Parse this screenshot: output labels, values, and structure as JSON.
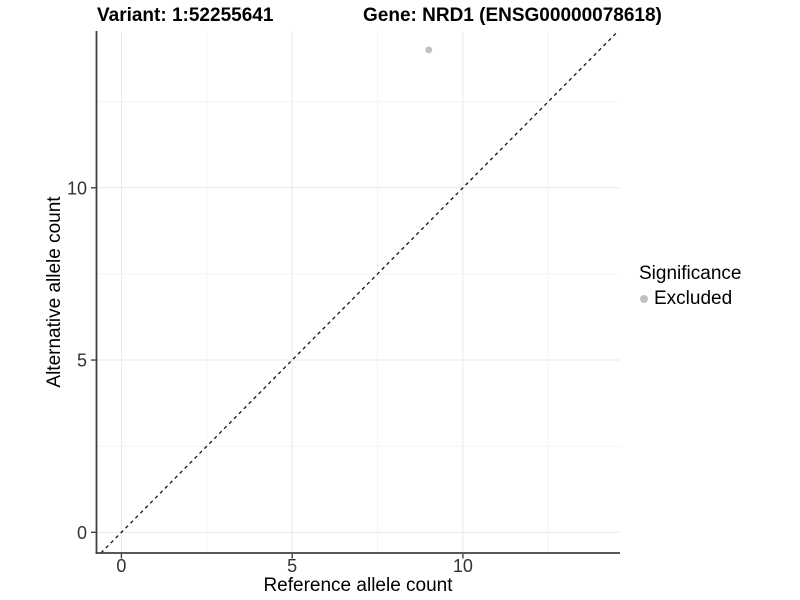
{
  "title": {
    "variant": "Variant: 1:52255641",
    "gene": "Gene: NRD1 (ENSG00000078618)"
  },
  "legend": {
    "title": "Significance",
    "items": [
      {
        "label": "Excluded",
        "color": "#c0c0c0"
      }
    ]
  },
  "chart_data": {
    "type": "scatter",
    "title": "Variant: 1:52255641   Gene: NRD1 (ENSG00000078618)",
    "xlabel": "Reference allele count",
    "ylabel": "Alternative allele count",
    "xlim": [
      -0.73,
      14.6
    ],
    "ylim": [
      -0.6,
      14.55
    ],
    "x_ticks": [
      0,
      5,
      10
    ],
    "y_ticks": [
      0,
      5,
      10
    ],
    "x_minor_ticks": [
      2.5,
      7.5,
      12.5
    ],
    "y_minor_ticks": [
      2.5,
      7.5,
      12.5
    ],
    "grid": true,
    "legend_position": "right",
    "series": [
      {
        "name": "Excluded",
        "color": "#c0c0c0",
        "point_radius": 3.4,
        "points": [
          {
            "x": 9,
            "y": 14
          }
        ]
      }
    ],
    "reference_line": {
      "type": "identity",
      "slope": 1,
      "intercept": 0,
      "style": "dashed",
      "color": "#141414"
    },
    "colors": {
      "axis_line": "#404040",
      "tick_mark": "#333333",
      "tick_label": "#333333",
      "grid_major": "#e9e9e9",
      "grid_minor": "#f4f4f4",
      "background": "#ffffff"
    }
  }
}
